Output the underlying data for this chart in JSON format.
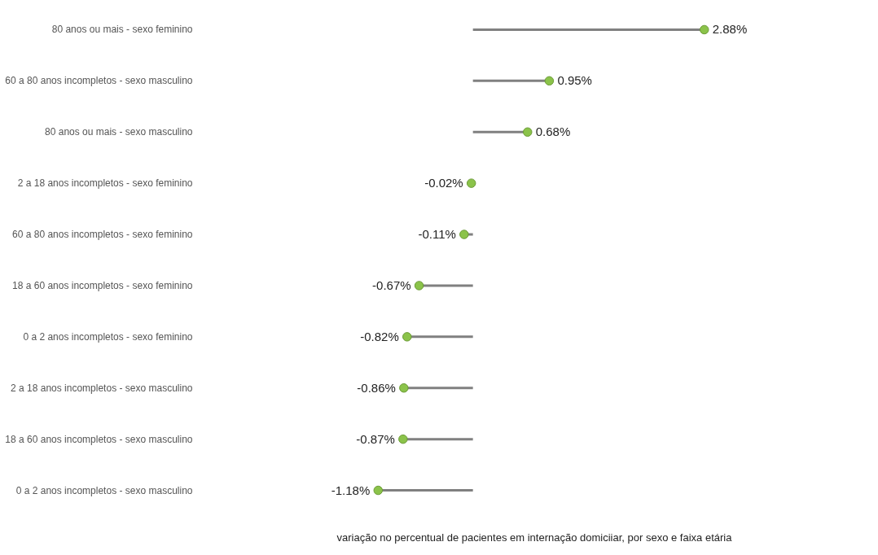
{
  "chart_data": {
    "type": "lollipop",
    "orientation": "horizontal",
    "xlabel": "variação no percentual de pacientes em internação domiciiar, por sexo e faixa etária",
    "categories": [
      "80 anos ou mais - sexo feminino",
      "60 a 80 anos incompletos - sexo masculino",
      "80 anos ou mais - sexo masculino",
      "2 a 18 anos incompletos - sexo feminino",
      "60 a 80 anos incompletos - sexo feminino",
      "18 a 60 anos incompletos - sexo feminino",
      "0 a 2 anos incompletos - sexo feminino",
      "2 a 18 anos incompletos - sexo masculino",
      "18 a 60 anos incompletos - sexo masculino",
      "0 a 2 anos incompletos - sexo masculino"
    ],
    "series": [
      {
        "color": "#8bc34a",
        "values": [
          2.88,
          0.95,
          0.68,
          -0.02,
          -0.11,
          -0.67,
          -0.82,
          -0.86,
          -0.87,
          -1.18
        ],
        "value_labels": [
          "2.88%",
          "0.95%",
          "0.68%",
          "-0.02%",
          "-0.11%",
          "-0.67%",
          "-0.82%",
          "-0.86%",
          "-0.87%",
          "-1.18%"
        ]
      }
    ],
    "marker": "circle"
  }
}
